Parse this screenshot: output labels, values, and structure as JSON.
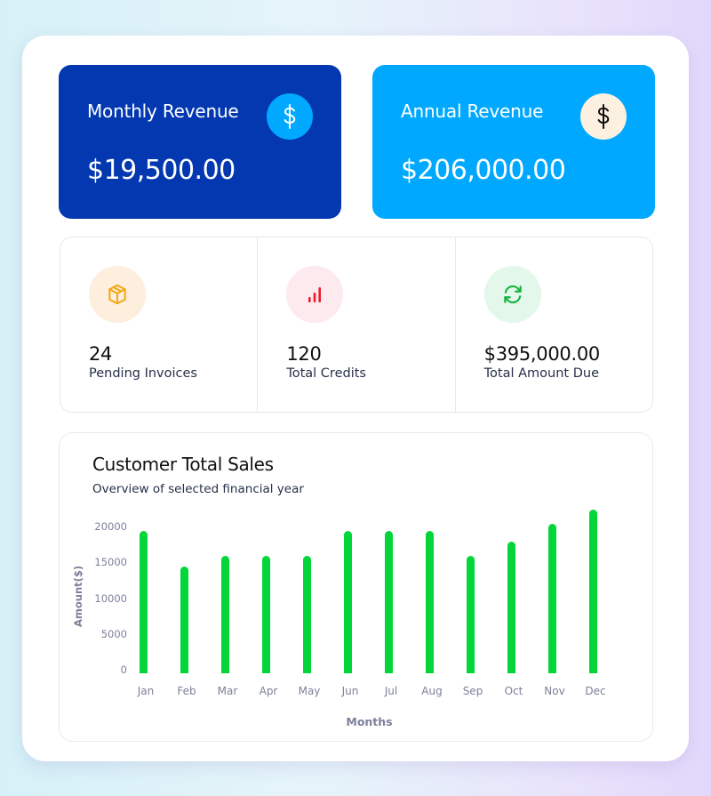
{
  "revenue_cards": {
    "monthly": {
      "title": "Monthly Revenue",
      "value": "$19,500.00",
      "icon": "dollar-icon",
      "bg": "#0338b0",
      "icon_bg": "#00a8ff",
      "icon_color": "#ffffff"
    },
    "annual": {
      "title": "Annual Revenue",
      "value": "$206,000.00",
      "icon": "dollar-icon",
      "bg": "#00a9ff",
      "icon_bg": "#fcf1e0",
      "icon_color": "#111111"
    }
  },
  "stats": [
    {
      "value": "24",
      "label": "Pending Invoices",
      "icon": "box-icon",
      "icon_bg": "#feeedd",
      "icon_color": "#f5a60a"
    },
    {
      "value": "120",
      "label": "Total Credits",
      "icon": "signal-bars-icon",
      "icon_bg": "#fdeaee",
      "icon_color": "#ee1c2e"
    },
    {
      "value": "$395,000.00",
      "label": "Total Amount Due",
      "icon": "refresh-icon",
      "icon_bg": "#e3f7ea",
      "icon_color": "#14b53e"
    }
  ],
  "chart": {
    "title": "Customer Total Sales",
    "subtitle": "Overview of selected financial year",
    "y_ticks": [
      "20000",
      "15000",
      "10000",
      "5000",
      "0"
    ],
    "y_label": "Amount($)",
    "x_label": "Months",
    "bar_color": "#04d63a"
  },
  "chart_data": {
    "type": "bar",
    "title": "Customer Total Sales",
    "subtitle": "Overview of selected financial year",
    "categories": [
      "Jan",
      "Feb",
      "Mar",
      "Apr",
      "May",
      "Jun",
      "Jul",
      "Aug",
      "Sep",
      "Oct",
      "Nov",
      "Dec"
    ],
    "values": [
      19500,
      14500,
      16000,
      16000,
      16000,
      19500,
      19500,
      19500,
      16000,
      18000,
      20500,
      22500
    ],
    "xlabel": "Months",
    "ylabel": "Amount($)",
    "y_ticks": [
      0,
      5000,
      10000,
      15000,
      20000
    ],
    "ylim": [
      0,
      23000
    ],
    "grid": false,
    "legend": "none"
  }
}
